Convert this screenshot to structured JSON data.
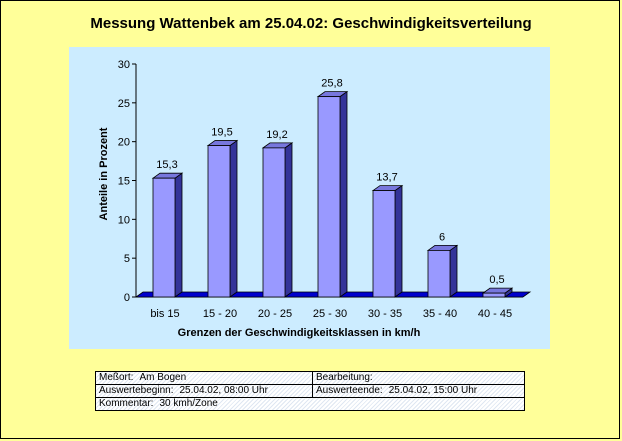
{
  "chart_data": {
    "type": "bar",
    "title": "Messung Wattenbek am 25.04.02: Geschwindigkeitsverteilung",
    "xlabel": "Grenzen der Geschwindigkeitsklassen in km/h",
    "ylabel": "Anteile in Prozent",
    "categories": [
      "bis 15",
      "15 - 20",
      "20 - 25",
      "25 - 30",
      "30 - 35",
      "35 - 40",
      "40 - 45"
    ],
    "values": [
      15.3,
      19.5,
      19.2,
      25.8,
      13.7,
      6,
      0.5
    ],
    "value_labels": [
      "15,3",
      "19,5",
      "19,2",
      "25,8",
      "13,7",
      "6",
      "0,5"
    ],
    "ylim": [
      0,
      30
    ],
    "yticks": [
      0,
      5,
      10,
      15,
      20,
      25,
      30
    ],
    "grid": false,
    "colors": {
      "bar_front": "#9999ff",
      "bar_side": "#333399",
      "bar_top": "#7777dd",
      "floor": "#0000cc",
      "plot_bg": "#ccecff",
      "page_bg": "#ffff99"
    }
  },
  "info": {
    "messort_label": "Meßort:",
    "messort_value": "Am Bogen",
    "bearbeitung_label": "Bearbeitung:",
    "bearbeitung_value": "",
    "auswertebeginn_label": "Auswertebeginn:",
    "auswertebeginn_value": "25.04.02, 08:00 Uhr",
    "auswerteende_label": "Auswerteende:",
    "auswerteende_value": "25.04.02, 15:00 Uhr",
    "kommentar_label": "Kommentar:",
    "kommentar_value": "30 kmh/Zone"
  }
}
